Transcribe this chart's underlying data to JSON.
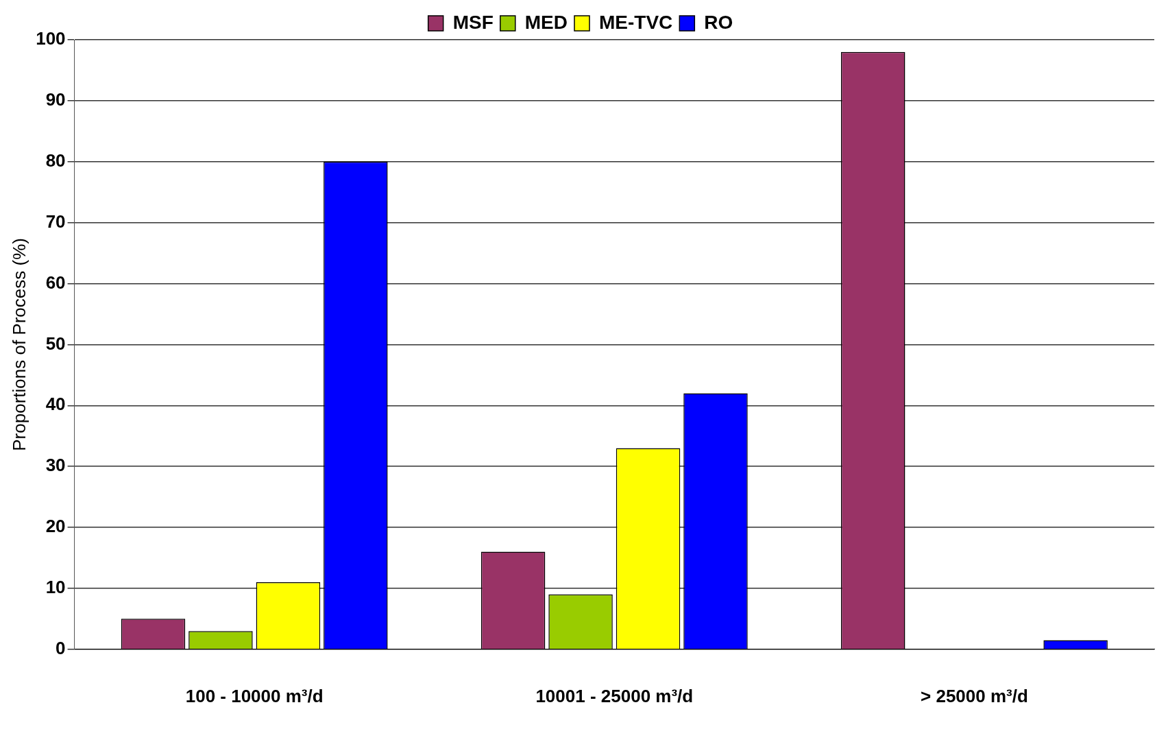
{
  "chart_data": {
    "type": "bar",
    "ylabel": "Proportions of Process (%)",
    "categories": [
      "100 - 10000 m³/d",
      "10001 - 25000 m³/d",
      "> 25000 m³/d"
    ],
    "series": [
      {
        "name": "MSF",
        "color": "#993366",
        "values": [
          5,
          16,
          98
        ]
      },
      {
        "name": "MED",
        "color": "#99cc00",
        "values": [
          3,
          9,
          null
        ]
      },
      {
        "name": "ME-TVC",
        "color": "#ffff00",
        "values": [
          11,
          33,
          null
        ]
      },
      {
        "name": "RO",
        "color": "#0000ff",
        "values": [
          80,
          42,
          1.5
        ]
      }
    ],
    "ylim": [
      0,
      100
    ],
    "yticks": [
      0,
      10,
      20,
      30,
      40,
      50,
      60,
      70,
      80,
      90,
      100
    ],
    "grid": "y",
    "legend": "top"
  }
}
